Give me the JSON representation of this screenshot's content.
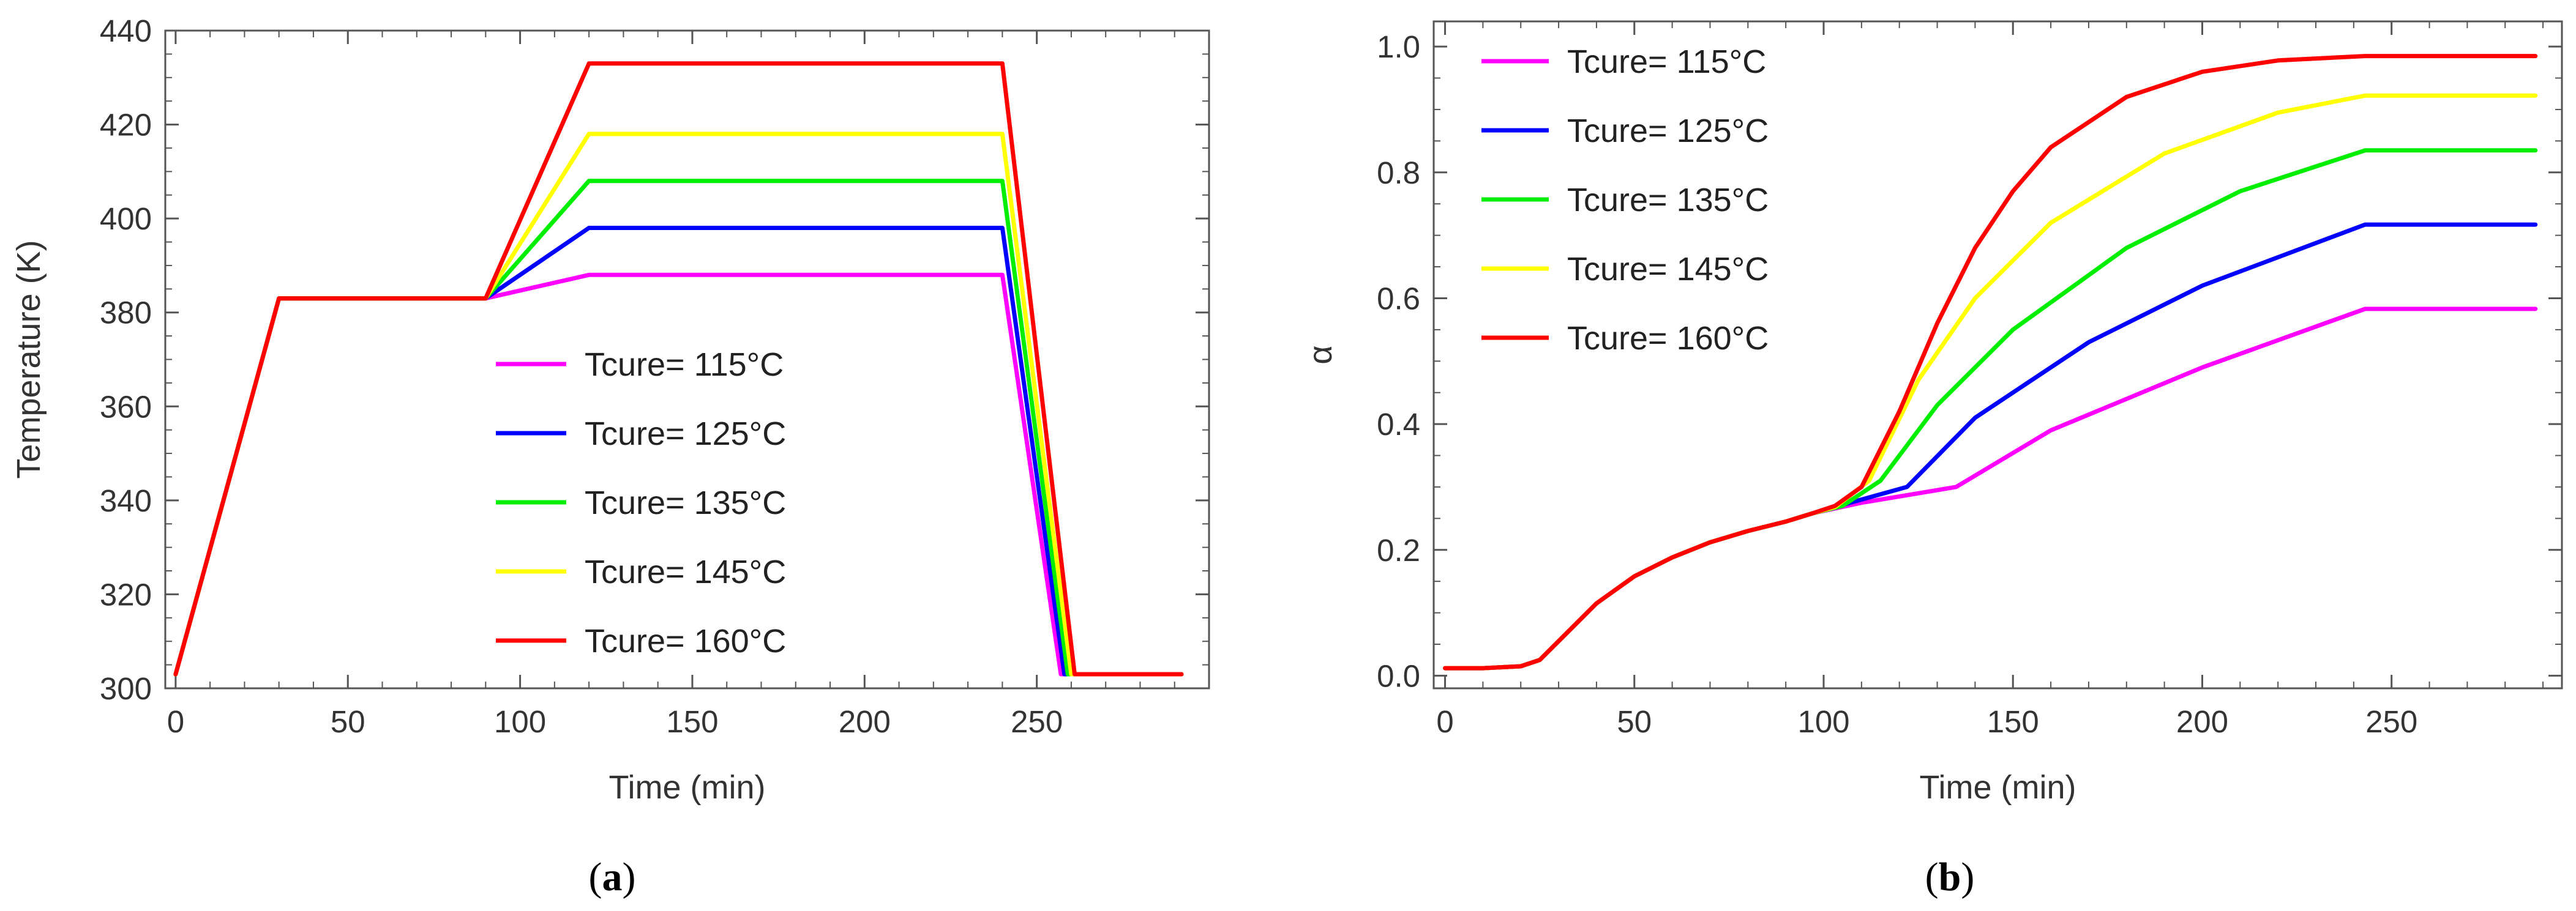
{
  "chart_data": [
    {
      "type": "line",
      "panel_label": {
        "open": "(",
        "letter": "a",
        "close": ")"
      },
      "xlabel": "Time (min)",
      "ylabel": "Temperature (K)",
      "xlim": [
        -3,
        300
      ],
      "ylim": [
        300,
        440
      ],
      "xticks": [
        0,
        50,
        100,
        150,
        200,
        250
      ],
      "yticks": [
        300,
        320,
        340,
        360,
        380,
        400,
        420,
        440
      ],
      "legend_position": "center-right",
      "series": [
        {
          "name": "Tcure= 115°C",
          "color": "#ff00ff",
          "x": [
            0,
            30,
            90,
            120,
            240,
            257,
            292
          ],
          "y": [
            303,
            383,
            383,
            388,
            388,
            303,
            303
          ]
        },
        {
          "name": "Tcure= 125°C",
          "color": "#0000ff",
          "x": [
            0,
            30,
            90,
            120,
            240,
            258,
            292
          ],
          "y": [
            303,
            383,
            383,
            398,
            398,
            303,
            303
          ]
        },
        {
          "name": "Tcure= 135°C",
          "color": "#00ee00",
          "x": [
            0,
            30,
            90,
            120,
            240,
            259,
            292
          ],
          "y": [
            303,
            383,
            383,
            408,
            408,
            303,
            303
          ]
        },
        {
          "name": "Tcure= 145°C",
          "color": "#ffff00",
          "x": [
            0,
            30,
            90,
            120,
            240,
            260,
            292
          ],
          "y": [
            303,
            383,
            383,
            418,
            418,
            303,
            303
          ]
        },
        {
          "name": "Tcure= 160°C",
          "color": "#ff0000",
          "x": [
            0,
            30,
            90,
            120,
            240,
            261,
            292
          ],
          "y": [
            303,
            383,
            383,
            433,
            433,
            303,
            303
          ]
        }
      ]
    },
    {
      "type": "line",
      "panel_label": {
        "open": "(",
        "letter": "b",
        "close": ")"
      },
      "xlabel": "Time (min)",
      "ylabel": "α",
      "xlim": [
        -3,
        295
      ],
      "ylim": [
        -0.02,
        1.04
      ],
      "xticks": [
        0,
        50,
        100,
        150,
        200,
        250
      ],
      "yticks": [
        0.0,
        0.2,
        0.4,
        0.6,
        0.8,
        1.0
      ],
      "ytick_labels": [
        "0.0",
        "0.2",
        "0.4",
        "0.6",
        "0.8",
        "1.0"
      ],
      "legend_position": "top-left",
      "series": [
        {
          "name": "Tcure= 115°C",
          "color": "#ff00ff",
          "x": [
            0,
            10,
            20,
            25,
            30,
            40,
            50,
            60,
            70,
            80,
            90,
            97,
            110,
            120,
            135,
            160,
            200,
            243,
            288
          ],
          "y": [
            0.012,
            0.012,
            0.015,
            0.025,
            0.055,
            0.115,
            0.158,
            0.188,
            0.212,
            0.23,
            0.245,
            0.258,
            0.275,
            0.285,
            0.3,
            0.39,
            0.49,
            0.583,
            0.583
          ]
        },
        {
          "name": "Tcure= 125°C",
          "color": "#0000ff",
          "x": [
            0,
            10,
            20,
            25,
            30,
            40,
            50,
            60,
            70,
            80,
            90,
            97,
            110,
            122,
            140,
            170,
            200,
            243,
            288
          ],
          "y": [
            0.012,
            0.012,
            0.015,
            0.025,
            0.055,
            0.115,
            0.158,
            0.188,
            0.212,
            0.23,
            0.245,
            0.258,
            0.28,
            0.3,
            0.41,
            0.53,
            0.62,
            0.717,
            0.717
          ]
        },
        {
          "name": "Tcure= 135°C",
          "color": "#00ee00",
          "x": [
            0,
            10,
            20,
            25,
            30,
            40,
            50,
            60,
            70,
            80,
            90,
            97,
            105,
            115,
            130,
            150,
            180,
            210,
            243,
            288
          ],
          "y": [
            0.012,
            0.012,
            0.015,
            0.025,
            0.055,
            0.115,
            0.158,
            0.188,
            0.212,
            0.23,
            0.245,
            0.258,
            0.27,
            0.31,
            0.43,
            0.55,
            0.68,
            0.77,
            0.835,
            0.835
          ]
        },
        {
          "name": "Tcure= 145°C",
          "color": "#ffff00",
          "x": [
            0,
            10,
            20,
            25,
            30,
            40,
            50,
            60,
            70,
            80,
            90,
            97,
            103,
            112,
            125,
            140,
            160,
            190,
            220,
            243,
            288
          ],
          "y": [
            0.012,
            0.012,
            0.015,
            0.025,
            0.055,
            0.115,
            0.158,
            0.188,
            0.212,
            0.23,
            0.245,
            0.258,
            0.268,
            0.31,
            0.47,
            0.6,
            0.72,
            0.83,
            0.895,
            0.922,
            0.922
          ]
        },
        {
          "name": "Tcure= 160°C",
          "color": "#ff0000",
          "x": [
            0,
            10,
            20,
            25,
            30,
            40,
            50,
            60,
            70,
            80,
            90,
            97,
            103,
            110,
            120,
            130,
            140,
            150,
            160,
            180,
            200,
            220,
            243,
            288
          ],
          "y": [
            0.012,
            0.012,
            0.015,
            0.025,
            0.055,
            0.115,
            0.158,
            0.188,
            0.212,
            0.23,
            0.245,
            0.258,
            0.27,
            0.3,
            0.42,
            0.56,
            0.68,
            0.77,
            0.84,
            0.92,
            0.96,
            0.978,
            0.985,
            0.985
          ]
        }
      ]
    }
  ]
}
